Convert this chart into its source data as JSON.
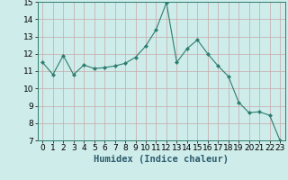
{
  "x": [
    0,
    1,
    2,
    3,
    4,
    5,
    6,
    7,
    8,
    9,
    10,
    11,
    12,
    13,
    14,
    15,
    16,
    17,
    18,
    19,
    20,
    21,
    22,
    23
  ],
  "y": [
    11.5,
    10.8,
    11.9,
    10.8,
    11.35,
    11.15,
    11.2,
    11.3,
    11.45,
    11.8,
    12.45,
    13.4,
    14.95,
    11.5,
    12.3,
    12.8,
    12.0,
    11.3,
    10.7,
    9.2,
    8.6,
    8.65,
    8.45,
    7.0
  ],
  "line_color": "#2e7d6e",
  "marker": "D",
  "marker_size": 2,
  "bg_color": "#cdecea",
  "grid_color": "#c8a8a8",
  "xlabel": "Humidex (Indice chaleur)",
  "ylim": [
    7,
    15
  ],
  "xlim": [
    -0.5,
    23.5
  ],
  "yticks": [
    7,
    8,
    9,
    10,
    11,
    12,
    13,
    14,
    15
  ],
  "xticks": [
    0,
    1,
    2,
    3,
    4,
    5,
    6,
    7,
    8,
    9,
    10,
    11,
    12,
    13,
    14,
    15,
    16,
    17,
    18,
    19,
    20,
    21,
    22,
    23
  ],
  "xlabel_fontsize": 7.5,
  "tick_fontsize": 6.5
}
